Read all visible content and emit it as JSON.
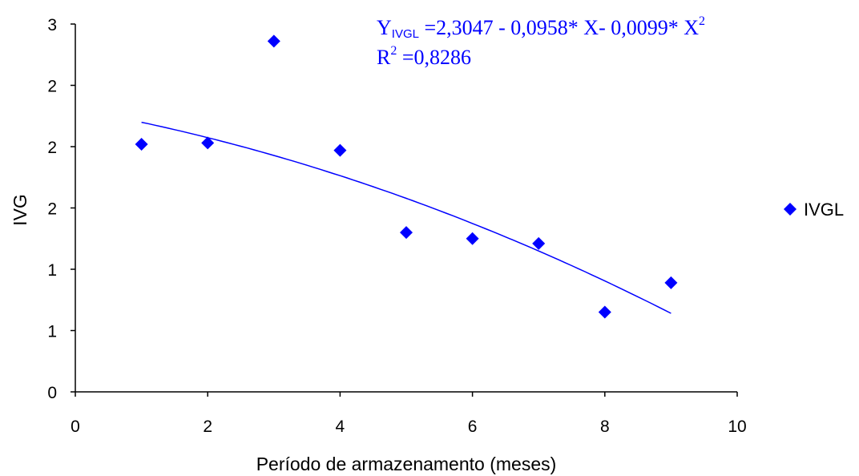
{
  "chart_data": {
    "type": "scatter",
    "title": "",
    "xlabel": "Período de armazenamento (meses)",
    "ylabel": "IVG",
    "xlim": [
      0,
      10
    ],
    "ylim": [
      0,
      3
    ],
    "x_ticks": [
      0,
      2,
      4,
      6,
      8,
      10
    ],
    "x_tick_labels": [
      "0",
      "2",
      "4",
      "6",
      "8",
      "10"
    ],
    "y_ticks": [
      0,
      0.5,
      1,
      1.5,
      2,
      2.5,
      3
    ],
    "y_tick_labels": [
      "0",
      "1",
      "1",
      "2",
      "2",
      "2",
      "3"
    ],
    "grid": false,
    "legend_position": "right",
    "series": [
      {
        "name": "IVGL",
        "color": "#0000ff",
        "marker": "diamond",
        "x": [
          1,
          2,
          3,
          4,
          5,
          6,
          7,
          8,
          9
        ],
        "y": [
          2.02,
          2.03,
          2.86,
          1.97,
          1.3,
          1.25,
          1.21,
          0.65,
          0.89
        ]
      }
    ],
    "trendline": {
      "type": "polynomial",
      "color": "#0000ff",
      "coefficients": [
        2.3047,
        -0.0958,
        -0.0099
      ],
      "x_range": [
        1,
        9
      ]
    },
    "annotation": {
      "equation_y": "Y",
      "equation_sub": "IVGL",
      "equation_main": " =2,3047 - 0,0958* X- 0,0099* X",
      "equation_sup": "2",
      "r2_base": "R",
      "r2_sup": "2",
      "r2_value": " =0,8286",
      "color": "#0000ff"
    }
  }
}
